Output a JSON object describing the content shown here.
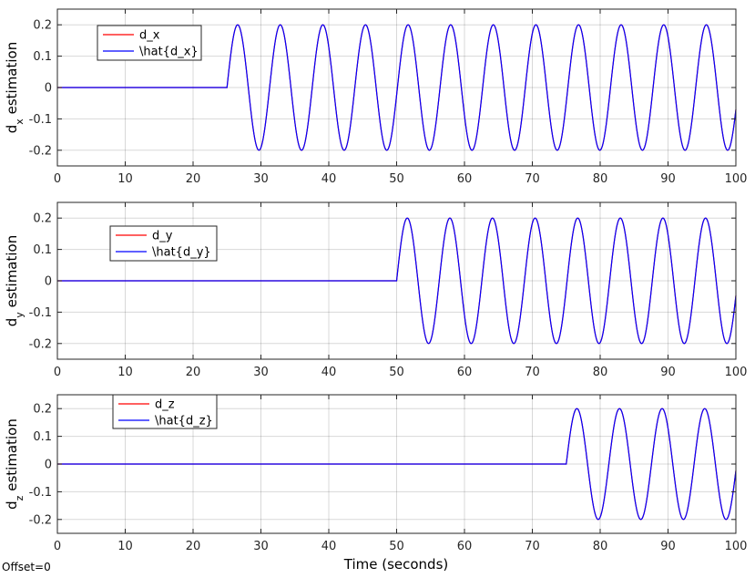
{
  "figure": {
    "xlabel": "Time (seconds)",
    "offset_label": "Offset=0"
  },
  "colors": {
    "true_signal": "#ff0000",
    "estimate": "#0000ff",
    "grid": "#262626",
    "axes": "#262626"
  },
  "chart_data": [
    {
      "type": "line",
      "ylabel_main": "d",
      "ylabel_sub": "x",
      "ylabel_rest": " estimation",
      "xlim": [
        0,
        100
      ],
      "ylim": [
        -0.25,
        0.25
      ],
      "xticks": [
        0,
        10,
        20,
        30,
        40,
        50,
        60,
        70,
        80,
        90,
        100
      ],
      "yticks": [
        -0.2,
        -0.1,
        0,
        0.1,
        0.2
      ],
      "ytick_labels": [
        "-0.2",
        "-0.1",
        "0",
        "0.1",
        "0.2"
      ],
      "grid": true,
      "legend_position": "top-left",
      "signal": {
        "onset": 25,
        "amplitude": 0.2,
        "period": 6.28
      },
      "series": [
        {
          "name": "d_x",
          "color": "#ff0000"
        },
        {
          "name": "\\hat{d_x}",
          "color": "#0000ff"
        }
      ]
    },
    {
      "type": "line",
      "ylabel_main": "d",
      "ylabel_sub": "y",
      "ylabel_rest": " estimation",
      "xlim": [
        0,
        100
      ],
      "ylim": [
        -0.25,
        0.25
      ],
      "xticks": [
        0,
        10,
        20,
        30,
        40,
        50,
        60,
        70,
        80,
        90,
        100
      ],
      "yticks": [
        -0.2,
        -0.1,
        0,
        0.1,
        0.2
      ],
      "ytick_labels": [
        "-0.2",
        "-0.1",
        "0",
        "0.1",
        "0.2"
      ],
      "grid": true,
      "legend_position": "top-left",
      "signal": {
        "onset": 50,
        "amplitude": 0.2,
        "period": 6.28
      },
      "series": [
        {
          "name": "d_y",
          "color": "#ff0000"
        },
        {
          "name": "\\hat{d_y}",
          "color": "#0000ff"
        }
      ]
    },
    {
      "type": "line",
      "ylabel_main": "d",
      "ylabel_sub": "z",
      "ylabel_rest": " estimation",
      "xlim": [
        0,
        100
      ],
      "ylim": [
        -0.25,
        0.25
      ],
      "xticks": [
        0,
        10,
        20,
        30,
        40,
        50,
        60,
        70,
        80,
        90,
        100
      ],
      "yticks": [
        -0.2,
        -0.1,
        0,
        0.1,
        0.2
      ],
      "ytick_labels": [
        "-0.2",
        "-0.1",
        "0",
        "0.1",
        "0.2"
      ],
      "grid": true,
      "legend_position": "top-left",
      "signal": {
        "onset": 75,
        "amplitude": 0.2,
        "period": 6.28
      },
      "series": [
        {
          "name": "d_z",
          "color": "#ff0000"
        },
        {
          "name": "\\hat{d_z}",
          "color": "#0000ff"
        }
      ]
    }
  ]
}
